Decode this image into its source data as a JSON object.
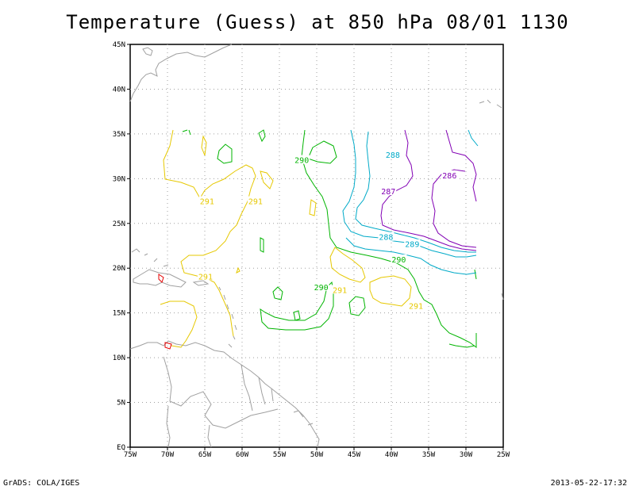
{
  "title": "Temperature (Guess) at 850 hPa 08/01 1130",
  "footer": {
    "left": "GrADS: COLA/IGES",
    "right": "2013-05-22-17:32"
  },
  "axes": {
    "lat_labels": [
      "EQ",
      "5N",
      "10N",
      "15N",
      "20N",
      "25N",
      "30N",
      "35N",
      "40N",
      "45N"
    ],
    "lon_labels": [
      "75W",
      "70W",
      "65W",
      "60W",
      "55W",
      "50W",
      "45W",
      "40W",
      "35W",
      "30W",
      "25W"
    ]
  },
  "colors": {
    "c291": "#e6c800",
    "c290": "#00b400",
    "c288": "#00aac8",
    "c287": "#8200b4",
    "coast": "#a0a0a0",
    "grid": "#a0a0a0"
  },
  "contour_labels": [
    {
      "text": "291",
      "color": "c291",
      "lon": -64.7,
      "lat": 27.5
    },
    {
      "text": "291",
      "color": "c291",
      "lon": -58.2,
      "lat": 27.5
    },
    {
      "text": "291",
      "color": "c291",
      "lon": -64.9,
      "lat": 19.1
    },
    {
      "text": "291",
      "color": "c291",
      "lon": -46.9,
      "lat": 17.6
    },
    {
      "text": "291",
      "color": "c291",
      "lon": -36.7,
      "lat": 15.8
    },
    {
      "text": "290",
      "color": "c290",
      "lon": -52.0,
      "lat": 32.1
    },
    {
      "text": "290",
      "color": "c290",
      "lon": -49.4,
      "lat": 17.9
    },
    {
      "text": "290",
      "color": "c290",
      "lon": -39.0,
      "lat": 21.0
    },
    {
      "text": "288",
      "color": "c288",
      "lon": -39.8,
      "lat": 32.7
    },
    {
      "text": "288",
      "color": "c288",
      "lon": -40.7,
      "lat": 23.5
    },
    {
      "text": "289",
      "color": "c288",
      "lon": -37.2,
      "lat": 22.7
    },
    {
      "text": "287",
      "color": "c287",
      "lon": -40.4,
      "lat": 28.6
    },
    {
      "text": "286",
      "color": "c287",
      "lon": -32.2,
      "lat": 30.4
    }
  ]
}
